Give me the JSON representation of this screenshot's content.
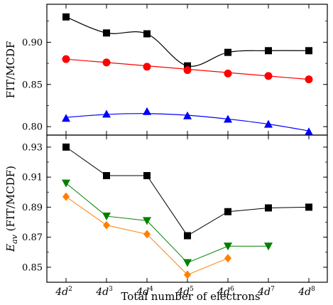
{
  "chart_data": [
    {
      "type": "line",
      "panel": "top",
      "ylabel": "FIT/MCDF",
      "ylim": [
        0.79,
        0.945
      ],
      "yticks": [
        "0.80",
        "0.85",
        "0.90"
      ],
      "ytick_values": [
        0.8,
        0.85,
        0.9
      ],
      "categories": [
        "4d2",
        "4d3",
        "4d4",
        "4d5",
        "4d6",
        "4d7",
        "4d8"
      ],
      "series": [
        {
          "marker": "square",
          "color": "#000000",
          "values": [
            0.93,
            0.911,
            0.91,
            0.872,
            0.888,
            0.89,
            0.89
          ],
          "curve": [
            0.93,
            0.911,
            0.91,
            0.872,
            0.888,
            0.89,
            0.89
          ]
        },
        {
          "marker": "circle",
          "color": "#ff0000",
          "values": [
            0.88,
            0.876,
            0.871,
            0.867,
            0.863,
            0.86,
            0.856
          ],
          "curve": [
            0.88,
            0.876,
            0.872,
            0.868,
            0.864,
            0.86,
            0.856
          ]
        },
        {
          "marker": "triangle-up",
          "color": "#0000ff",
          "values": [
            0.81,
            0.815,
            0.818,
            0.813,
            0.809,
            0.803,
            0.794
          ],
          "curve": [
            0.811,
            0.8145,
            0.8155,
            0.8135,
            0.809,
            0.803,
            0.795
          ]
        }
      ]
    },
    {
      "type": "line",
      "panel": "bottom",
      "ylabel_main": "E",
      "ylabel_sub": "av",
      "ylabel_rest": " (FIT/MCDF)",
      "ylim": [
        0.84,
        0.938
      ],
      "yticks": [
        "0.85",
        "0.87",
        "0.89",
        "0.91",
        "0.93"
      ],
      "ytick_values": [
        0.85,
        0.87,
        0.89,
        0.91,
        0.93
      ],
      "categories": [
        "4d2",
        "4d3",
        "4d4",
        "4d5",
        "4d6",
        "4d7",
        "4d8"
      ],
      "series": [
        {
          "marker": "square",
          "color": "#000000",
          "values": [
            0.93,
            0.911,
            0.911,
            0.871,
            0.887,
            0.8895,
            0.89
          ]
        },
        {
          "marker": "triangle-down",
          "color": "#008000",
          "values": [
            0.906,
            0.884,
            0.881,
            0.853,
            0.864,
            0.864,
            null
          ]
        },
        {
          "marker": "diamond",
          "color": "#ff8000",
          "values": [
            0.897,
            0.878,
            0.872,
            0.845,
            0.856,
            null,
            null
          ]
        }
      ]
    }
  ],
  "xaxis": {
    "xlabel": "Total number of electrons",
    "tick_labels": [
      {
        "base": "4d",
        "sup": "2"
      },
      {
        "base": "4d",
        "sup": "3"
      },
      {
        "base": "4d",
        "sup": "4"
      },
      {
        "base": "4d",
        "sup": "5"
      },
      {
        "base": "4d",
        "sup": "6"
      },
      {
        "base": "4d",
        "sup": "7"
      },
      {
        "base": "4d",
        "sup": "8"
      }
    ]
  }
}
